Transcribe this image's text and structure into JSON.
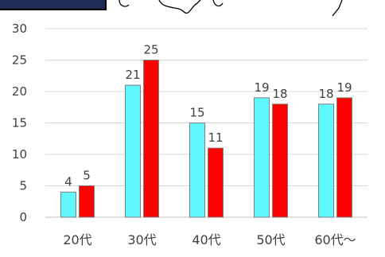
{
  "chart_data": {
    "type": "bar",
    "categories": [
      "20代",
      "30代",
      "40代",
      "50代",
      "60代～"
    ],
    "series": [
      {
        "values": [
          4,
          21,
          15,
          19,
          18
        ],
        "color": "#5ff8ff"
      },
      {
        "values": [
          5,
          25,
          11,
          18,
          19
        ],
        "color": "#ff0000"
      }
    ],
    "yticks": [
      "0",
      "5",
      "10",
      "15",
      "20",
      "25",
      "30"
    ],
    "ylim": [
      0,
      30
    ],
    "grid": true,
    "title": "",
    "xlabel": "",
    "ylabel": "",
    "data_labels": true
  },
  "colors": {
    "bar_outline": "#7f7f7f",
    "grid": "#d9d9d9",
    "axis": "#bfbfbf",
    "text": "#404040",
    "header_box_fill": "#1f2d57",
    "decor_stroke": "#000000"
  }
}
